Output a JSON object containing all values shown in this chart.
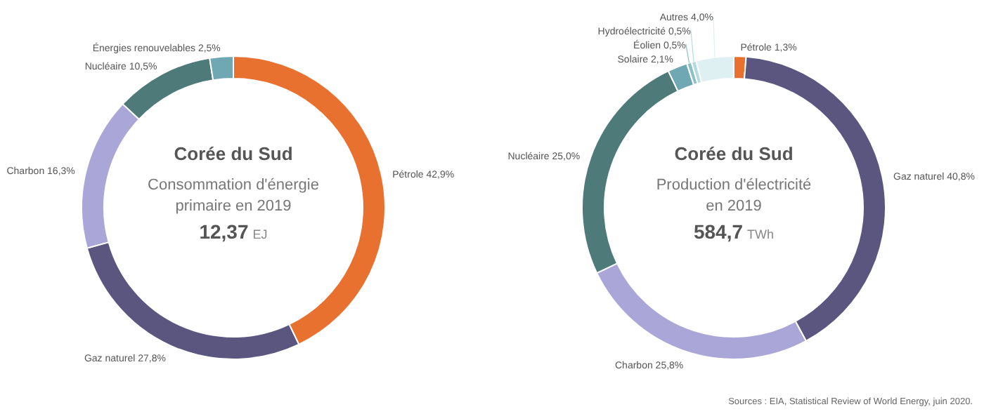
{
  "chart_data": [
    {
      "type": "donut",
      "title": "Corée du Sud",
      "subtitle": "Consommation d'énergie primaire en 2019",
      "annotations": [
        "12,37 EJ"
      ],
      "categories": [
        "Pétrole",
        "Gaz naturel",
        "Charbon",
        "Nucléaire",
        "Énergies renouvelables"
      ],
      "values": [
        42.9,
        27.8,
        16.3,
        10.5,
        2.5
      ],
      "value_labels": [
        "42,9%",
        "27,8%",
        "16,3%",
        "10,5%",
        "2,5%"
      ],
      "colors": [
        "#e8712f",
        "#5a5680",
        "#aba6d8",
        "#4e7b7a",
        "#6fa7b3"
      ],
      "legend": false
    },
    {
      "type": "donut",
      "title": "Corée du Sud",
      "subtitle": "Production d'électricité en 2019",
      "annotations": [
        "584,7 TWh",
        "Sources : EIA, Statistical Review of World Energy, juin 2020."
      ],
      "categories": [
        "Pétrole",
        "Gaz naturel",
        "Charbon",
        "Nucléaire",
        "Solaire",
        "Éolien",
        "Hydroélectricité",
        "Autres"
      ],
      "values": [
        1.3,
        40.8,
        25.8,
        25.0,
        2.1,
        0.5,
        0.5,
        4.0
      ],
      "value_labels": [
        "1,3%",
        "40,8%",
        "25,8%",
        "25,0%",
        "2,1%",
        "0,5%",
        "0,5%",
        "4,0%"
      ],
      "colors": [
        "#e8712f",
        "#5a5680",
        "#aba6d8",
        "#4e7b7a",
        "#6fa7b3",
        "#8dbfc9",
        "#b4dbe2",
        "#dff0f2"
      ],
      "legend": false
    }
  ]
}
